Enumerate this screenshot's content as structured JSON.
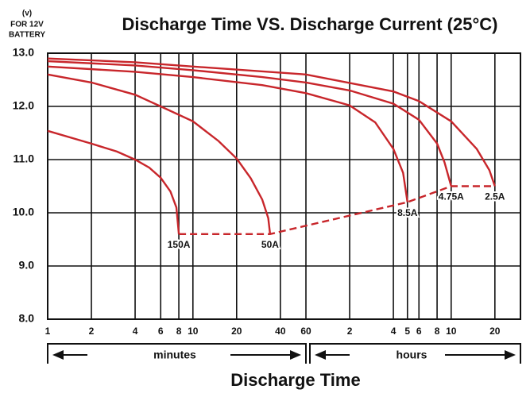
{
  "chart_data": {
    "type": "line",
    "title": "Discharge Time VS. Discharge Current (25°C)",
    "ylabel_lines": [
      "(v)",
      "FOR 12V",
      "BATTERY"
    ],
    "xlabel": "Discharge Time",
    "x_groups": [
      "minutes",
      "hours"
    ],
    "xscale": "log",
    "grid": true,
    "xlim": [
      1,
      1800
    ],
    "ylim": [
      8,
      13
    ],
    "xticks": [
      1,
      2,
      4,
      6,
      8,
      10,
      20,
      40,
      60,
      {
        "value": 120,
        "label": "2"
      },
      {
        "value": 240,
        "label": "4"
      },
      {
        "value": 300,
        "label": "5"
      },
      {
        "value": 360,
        "label": "6"
      },
      {
        "value": 480,
        "label": "8"
      },
      {
        "value": 600,
        "label": "10"
      },
      {
        "value": 1200,
        "label": "20"
      }
    ],
    "yticks": [
      {
        "value": 8,
        "label": "8.0"
      },
      {
        "value": 9,
        "label": "9.0"
      },
      {
        "value": 10,
        "label": "10.0"
      },
      {
        "value": 11,
        "label": "11.0"
      },
      {
        "value": 12,
        "label": "12.0"
      },
      {
        "value": 13,
        "label": "13.0"
      }
    ],
    "series": [
      {
        "name": "150A",
        "color": "#c8262b",
        "x": [
          1,
          2,
          3,
          4,
          5,
          6,
          7,
          7.7,
          8
        ],
        "values": [
          11.54,
          11.3,
          11.15,
          11.0,
          10.85,
          10.66,
          10.4,
          10.1,
          9.6
        ]
      },
      {
        "name": "50A",
        "color": "#c8262b",
        "x": [
          1,
          2,
          4,
          6,
          10,
          15,
          20,
          25,
          30,
          33,
          34
        ],
        "values": [
          12.6,
          12.45,
          12.22,
          12.0,
          11.72,
          11.35,
          11.02,
          10.65,
          10.25,
          9.9,
          9.6
        ]
      },
      {
        "name": "8.5A",
        "color": "#c8262b",
        "x": [
          1,
          4,
          10,
          30,
          60,
          120,
          180,
          240,
          280,
          300
        ],
        "values": [
          12.75,
          12.65,
          12.55,
          12.4,
          12.25,
          12.02,
          11.7,
          11.2,
          10.75,
          10.2
        ]
      },
      {
        "name": "4.75A",
        "color": "#c8262b",
        "x": [
          1,
          4,
          10,
          30,
          60,
          120,
          240,
          360,
          480,
          540,
          600
        ],
        "values": [
          12.85,
          12.77,
          12.68,
          12.55,
          12.45,
          12.3,
          12.05,
          11.75,
          11.3,
          10.95,
          10.5
        ]
      },
      {
        "name": "2.5A",
        "color": "#c8262b",
        "x": [
          1,
          4,
          10,
          60,
          240,
          360,
          600,
          900,
          1100,
          1200
        ],
        "values": [
          12.9,
          12.83,
          12.75,
          12.6,
          12.28,
          12.1,
          11.72,
          11.2,
          10.8,
          10.5
        ]
      }
    ],
    "end_line": {
      "color": "#c8262b",
      "dashed": true,
      "x": [
        8,
        34,
        300,
        600,
        1200
      ],
      "values": [
        9.6,
        9.6,
        10.2,
        10.5,
        10.5
      ]
    }
  }
}
